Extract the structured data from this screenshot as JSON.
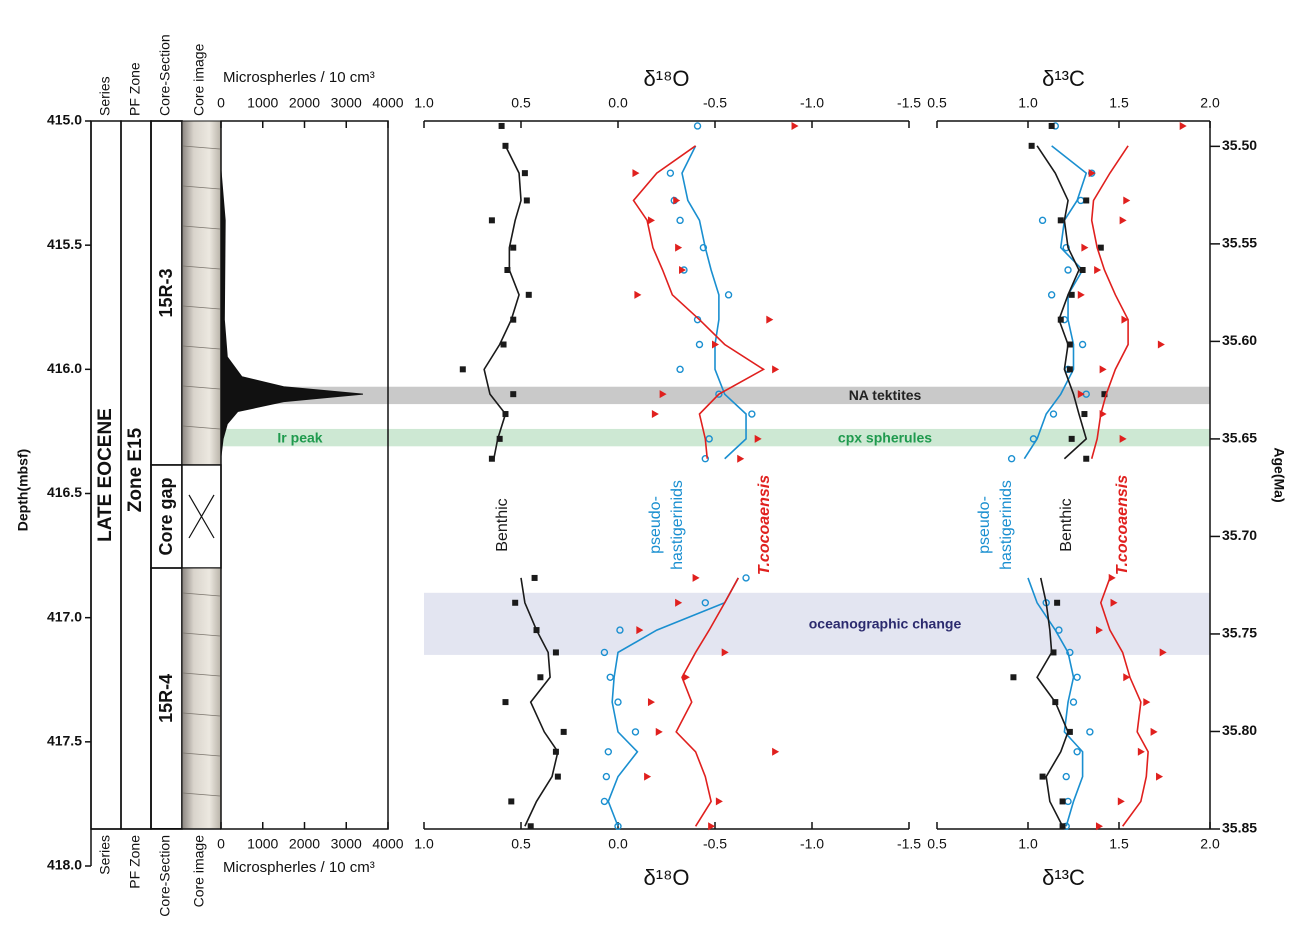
{
  "axes": {
    "depth": {
      "title": "Depth(mbsf)",
      "ylim": [
        415,
        418
      ],
      "yticks": [
        {
          "value": 415,
          "label": "415.0"
        },
        415.5,
        {
          "value": 416,
          "label": "416.0"
        },
        416.5,
        {
          "value": 417,
          "label": "417.0"
        },
        417.5,
        {
          "value": 418,
          "label": "418.0"
        }
      ]
    },
    "age": {
      "title": "Age(Ma)",
      "y2lim": [
        35.487,
        35.85
      ],
      "y2ticks": [
        {
          "value": 35.5,
          "label": "35.50"
        },
        35.55,
        {
          "value": 35.6,
          "label": "35.60"
        },
        35.65,
        {
          "value": 35.7,
          "label": "35.70"
        },
        35.75,
        {
          "value": 35.8,
          "label": "35.80"
        },
        35.85
      ]
    }
  },
  "column_headers": [
    "Series",
    "PF Zone",
    "Core-Section",
    "Core image"
  ],
  "series_label": "LATE EOCENE",
  "pf_zone_label": "Zone E15",
  "core_sections": [
    {
      "label": "15R-3",
      "depth": [
        415.0,
        416.385
      ]
    },
    {
      "label": "Core gap",
      "depth": [
        416.385,
        416.8
      ]
    },
    {
      "label": "15R-4",
      "depth": [
        416.8,
        417.85
      ]
    }
  ],
  "bands": [
    {
      "labels": [
        "NA tektites"
      ],
      "depth": [
        416.07,
        416.14
      ],
      "color": "#c9c9c9",
      "text_color": "#222222"
    },
    {
      "labels": [
        "Ir peak",
        "cpx spherules"
      ],
      "depth": [
        416.24,
        416.31
      ],
      "color": "#cde8d3",
      "text_color": "#1f9a4e"
    },
    {
      "labels": [
        "oceanographic change"
      ],
      "depth": [
        416.9,
        417.15
      ],
      "color": "#e3e5f1",
      "text_color": "#2b2a6e"
    }
  ],
  "chart_data": [
    {
      "type": "area",
      "title": "Microspherles / 10 cm³",
      "xlim": [
        0,
        4000
      ],
      "xticks": [
        0,
        1000,
        2000,
        3000,
        4000
      ],
      "color": "#111111",
      "y": [
        415.0,
        415.2,
        415.4,
        415.8,
        415.95,
        416.03,
        416.07,
        416.1,
        416.13,
        416.17,
        416.22,
        416.28,
        416.35,
        416.8,
        417.85
      ],
      "values": [
        0,
        0,
        100,
        80,
        150,
        500,
        1500,
        3400,
        1500,
        400,
        150,
        50,
        0,
        0,
        0
      ]
    },
    {
      "type": "scatter",
      "title": "δ¹⁸O",
      "xlim": [
        1,
        -1.5
      ],
      "xticks": [
        {
          "value": 1,
          "label": "1.0"
        },
        0.5,
        {
          "value": 0,
          "label": "0.0"
        },
        -0.5,
        {
          "value": -1,
          "label": "-1.0"
        },
        -1.5
      ],
      "y": [
        415.02,
        415.1,
        415.21,
        415.32,
        415.4,
        415.51,
        415.6,
        415.7,
        415.8,
        415.9,
        416.0,
        416.1,
        416.18,
        416.28,
        416.36,
        null,
        416.84,
        416.94,
        417.05,
        417.14,
        417.24,
        417.34,
        417.46,
        417.54,
        417.64,
        417.74,
        417.84
      ],
      "series": [
        {
          "name": [
            "Benthic"
          ],
          "color": "#1a1a1a",
          "marker": "square",
          "values": [
            0.6,
            0.58,
            0.48,
            0.47,
            0.65,
            0.54,
            0.57,
            0.46,
            0.54,
            0.59,
            0.8,
            0.54,
            0.58,
            0.61,
            0.65,
            null,
            0.43,
            0.53,
            0.42,
            0.32,
            0.4,
            0.58,
            0.28,
            0.32,
            0.31,
            0.55,
            0.45
          ],
          "trend": [
            null,
            0.58,
            0.51,
            0.5,
            0.53,
            0.56,
            0.56,
            0.51,
            0.55,
            0.61,
            0.69,
            0.66,
            0.58,
            0.62,
            0.64,
            null,
            0.5,
            0.48,
            0.42,
            0.36,
            0.35,
            0.45,
            0.38,
            0.31,
            0.34,
            0.42,
            0.48
          ]
        },
        {
          "name": [
            "pseudo-",
            "hastigerinids"
          ],
          "color": "#1a8fd0",
          "marker": "circle",
          "values": [
            -0.41,
            null,
            -0.27,
            -0.29,
            -0.32,
            -0.44,
            -0.34,
            -0.57,
            -0.41,
            -0.42,
            -0.32,
            -0.52,
            -0.69,
            -0.47,
            -0.45,
            null,
            -0.66,
            -0.45,
            -0.01,
            0.07,
            0.04,
            0,
            -0.09,
            0.05,
            0.06,
            0.07,
            0
          ],
          "trend": [
            null,
            -0.4,
            -0.33,
            -0.36,
            -0.42,
            -0.45,
            -0.48,
            -0.52,
            -0.52,
            -0.5,
            -0.5,
            -0.55,
            -0.66,
            -0.66,
            -0.55,
            null,
            -0.62,
            -0.55,
            -0.2,
            0,
            0.02,
            0.03,
            0,
            -0.1,
            0,
            0.05,
            0
          ]
        },
        {
          "name": [
            "T.cocoaensis"
          ],
          "color": "#e0201e",
          "marker": "triangle",
          "values": [
            -0.91,
            null,
            -0.09,
            -0.3,
            -0.17,
            -0.31,
            -0.33,
            -0.1,
            -0.78,
            -0.5,
            -0.81,
            -0.23,
            -0.19,
            -0.72,
            -0.63,
            null,
            -0.4,
            -0.31,
            -0.11,
            -0.55,
            -0.35,
            -0.17,
            -0.21,
            -0.81,
            -0.15,
            -0.52,
            -0.48
          ],
          "trend": [
            null,
            -0.4,
            -0.2,
            -0.08,
            -0.15,
            -0.18,
            -0.23,
            -0.28,
            -0.42,
            -0.55,
            -0.75,
            -0.52,
            -0.42,
            -0.45,
            -0.46,
            null,
            -0.62,
            -0.55,
            -0.47,
            -0.4,
            -0.33,
            -0.38,
            -0.3,
            -0.4,
            -0.45,
            -0.48,
            -0.4
          ]
        }
      ]
    },
    {
      "type": "scatter",
      "title": "δ¹³C",
      "xlim": [
        0.5,
        2
      ],
      "xticks": [
        0.5,
        {
          "value": 1,
          "label": "1.0"
        },
        1.5,
        {
          "value": 2,
          "label": "2.0"
        }
      ],
      "y": [
        415.02,
        415.1,
        415.21,
        415.32,
        415.4,
        415.51,
        415.6,
        415.7,
        415.8,
        415.9,
        416.0,
        416.1,
        416.18,
        416.28,
        416.36,
        null,
        416.84,
        416.94,
        417.05,
        417.14,
        417.24,
        417.34,
        417.46,
        417.54,
        417.64,
        417.74,
        417.84
      ],
      "series": [
        {
          "name": [
            "pseudo-",
            "hastigerinids"
          ],
          "color": "#1a8fd0",
          "marker": "circle",
          "values": [
            1.15,
            null,
            1.35,
            1.29,
            1.08,
            1.21,
            1.22,
            1.13,
            1.2,
            1.3,
            1.22,
            1.32,
            1.14,
            1.03,
            0.91,
            null,
            null,
            1.1,
            1.17,
            1.23,
            1.27,
            1.25,
            1.34,
            1.27,
            1.21,
            1.22,
            1.21
          ],
          "trend": [
            null,
            1.13,
            1.32,
            1.27,
            1.2,
            1.18,
            1.3,
            1.22,
            1.22,
            1.25,
            1.25,
            1.18,
            1.1,
            1.05,
            0.98,
            null,
            1.0,
            1.05,
            1.15,
            1.22,
            1.25,
            1.22,
            1.2,
            1.3,
            1.3,
            1.25,
            1.21
          ]
        },
        {
          "name": [
            "Benthic"
          ],
          "color": "#1a1a1a",
          "marker": "square",
          "values": [
            1.13,
            1.02,
            null,
            1.32,
            1.18,
            1.4,
            1.3,
            1.24,
            1.18,
            1.23,
            1.23,
            1.42,
            1.31,
            1.24,
            1.32,
            null,
            null,
            1.16,
            null,
            1.14,
            0.92,
            1.15,
            1.23,
            null,
            1.08,
            1.19,
            1.19
          ],
          "trend": [
            null,
            1.05,
            1.15,
            1.22,
            1.2,
            1.22,
            1.28,
            1.22,
            1.17,
            1.22,
            1.2,
            1.25,
            1.28,
            1.32,
            1.2,
            null,
            1.07,
            1.1,
            1.12,
            1.13,
            1.05,
            1.15,
            1.22,
            1.18,
            1.1,
            1.12,
            1.19
          ]
        },
        {
          "name": [
            "T.cocoaensis"
          ],
          "color": "#e0201e",
          "marker": "triangle",
          "values": [
            1.85,
            null,
            1.35,
            1.54,
            1.52,
            1.31,
            1.38,
            1.29,
            1.53,
            1.73,
            1.41,
            1.29,
            1.41,
            1.52,
            null,
            null,
            1.46,
            1.47,
            1.39,
            1.74,
            1.54,
            1.65,
            1.69,
            1.62,
            1.72,
            1.51,
            1.39
          ],
          "trend": [
            null,
            1.55,
            1.45,
            1.36,
            1.35,
            1.38,
            1.42,
            1.48,
            1.55,
            1.55,
            1.48,
            1.43,
            1.4,
            1.38,
            1.35,
            null,
            1.45,
            1.4,
            1.45,
            1.52,
            1.56,
            1.62,
            1.6,
            1.66,
            1.65,
            1.62,
            1.52
          ]
        }
      ]
    }
  ]
}
